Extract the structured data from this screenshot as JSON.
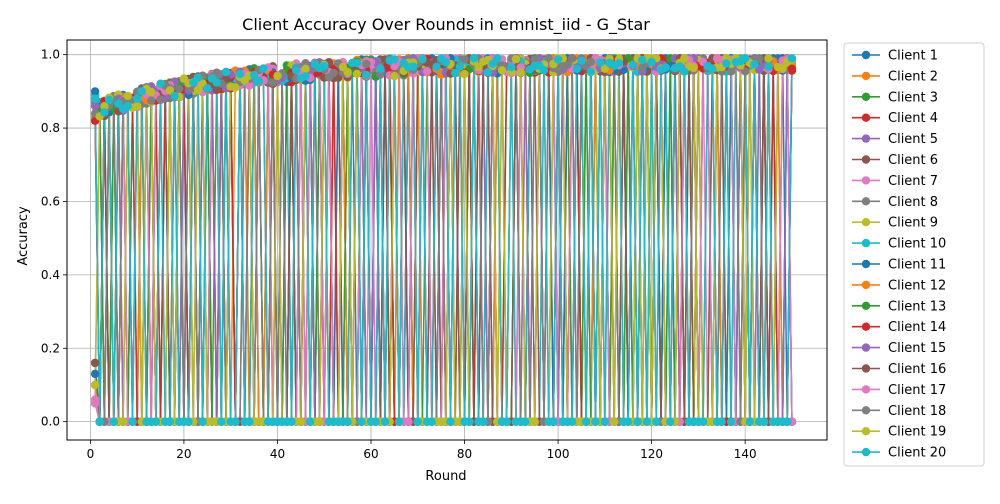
{
  "chart_data": {
    "type": "line",
    "title": "Client Accuracy Over Rounds in emnist_iid - G_Star",
    "xlabel": "Round",
    "ylabel": "Accuracy",
    "xlim": [
      -5,
      157.5
    ],
    "ylim": [
      -0.05,
      1.04
    ],
    "xticks": [
      0,
      20,
      40,
      60,
      80,
      100,
      120,
      140
    ],
    "yticks": [
      0.0,
      0.2,
      0.4,
      0.6,
      0.8,
      1.0
    ],
    "xtick_labels": [
      "0",
      "20",
      "40",
      "60",
      "80",
      "100",
      "120",
      "140"
    ],
    "ytick_labels": [
      "0.0",
      "0.2",
      "0.4",
      "0.6",
      "0.8",
      "1.0"
    ],
    "grid": true,
    "legend_position": "outside-right",
    "rounds": 150,
    "pattern": "Each client alternates between 0.0 (not selected) and its accuracy (selected). Accuracy rises from about 0.82-0.93 at round 1 to about 0.97-0.99 by round 150.",
    "series": [
      {
        "name": "Client 1",
        "color": "#1f77b4"
      },
      {
        "name": "Client 2",
        "color": "#ff7f0e"
      },
      {
        "name": "Client 3",
        "color": "#2ca02c"
      },
      {
        "name": "Client 4",
        "color": "#d62728"
      },
      {
        "name": "Client 5",
        "color": "#9467bd"
      },
      {
        "name": "Client 6",
        "color": "#8c564b"
      },
      {
        "name": "Client 7",
        "color": "#e377c2"
      },
      {
        "name": "Client 8",
        "color": "#7f7f7f"
      },
      {
        "name": "Client 9",
        "color": "#bcbd22"
      },
      {
        "name": "Client 10",
        "color": "#17becf"
      },
      {
        "name": "Client 11",
        "color": "#1f77b4"
      },
      {
        "name": "Client 12",
        "color": "#ff7f0e"
      },
      {
        "name": "Client 13",
        "color": "#2ca02c"
      },
      {
        "name": "Client 14",
        "color": "#d62728"
      },
      {
        "name": "Client 15",
        "color": "#9467bd"
      },
      {
        "name": "Client 16",
        "color": "#8c564b"
      },
      {
        "name": "Client 17",
        "color": "#e377c2"
      },
      {
        "name": "Client 18",
        "color": "#7f7f7f"
      },
      {
        "name": "Client 19",
        "color": "#bcbd22"
      },
      {
        "name": "Client 20",
        "color": "#17becf"
      }
    ]
  }
}
